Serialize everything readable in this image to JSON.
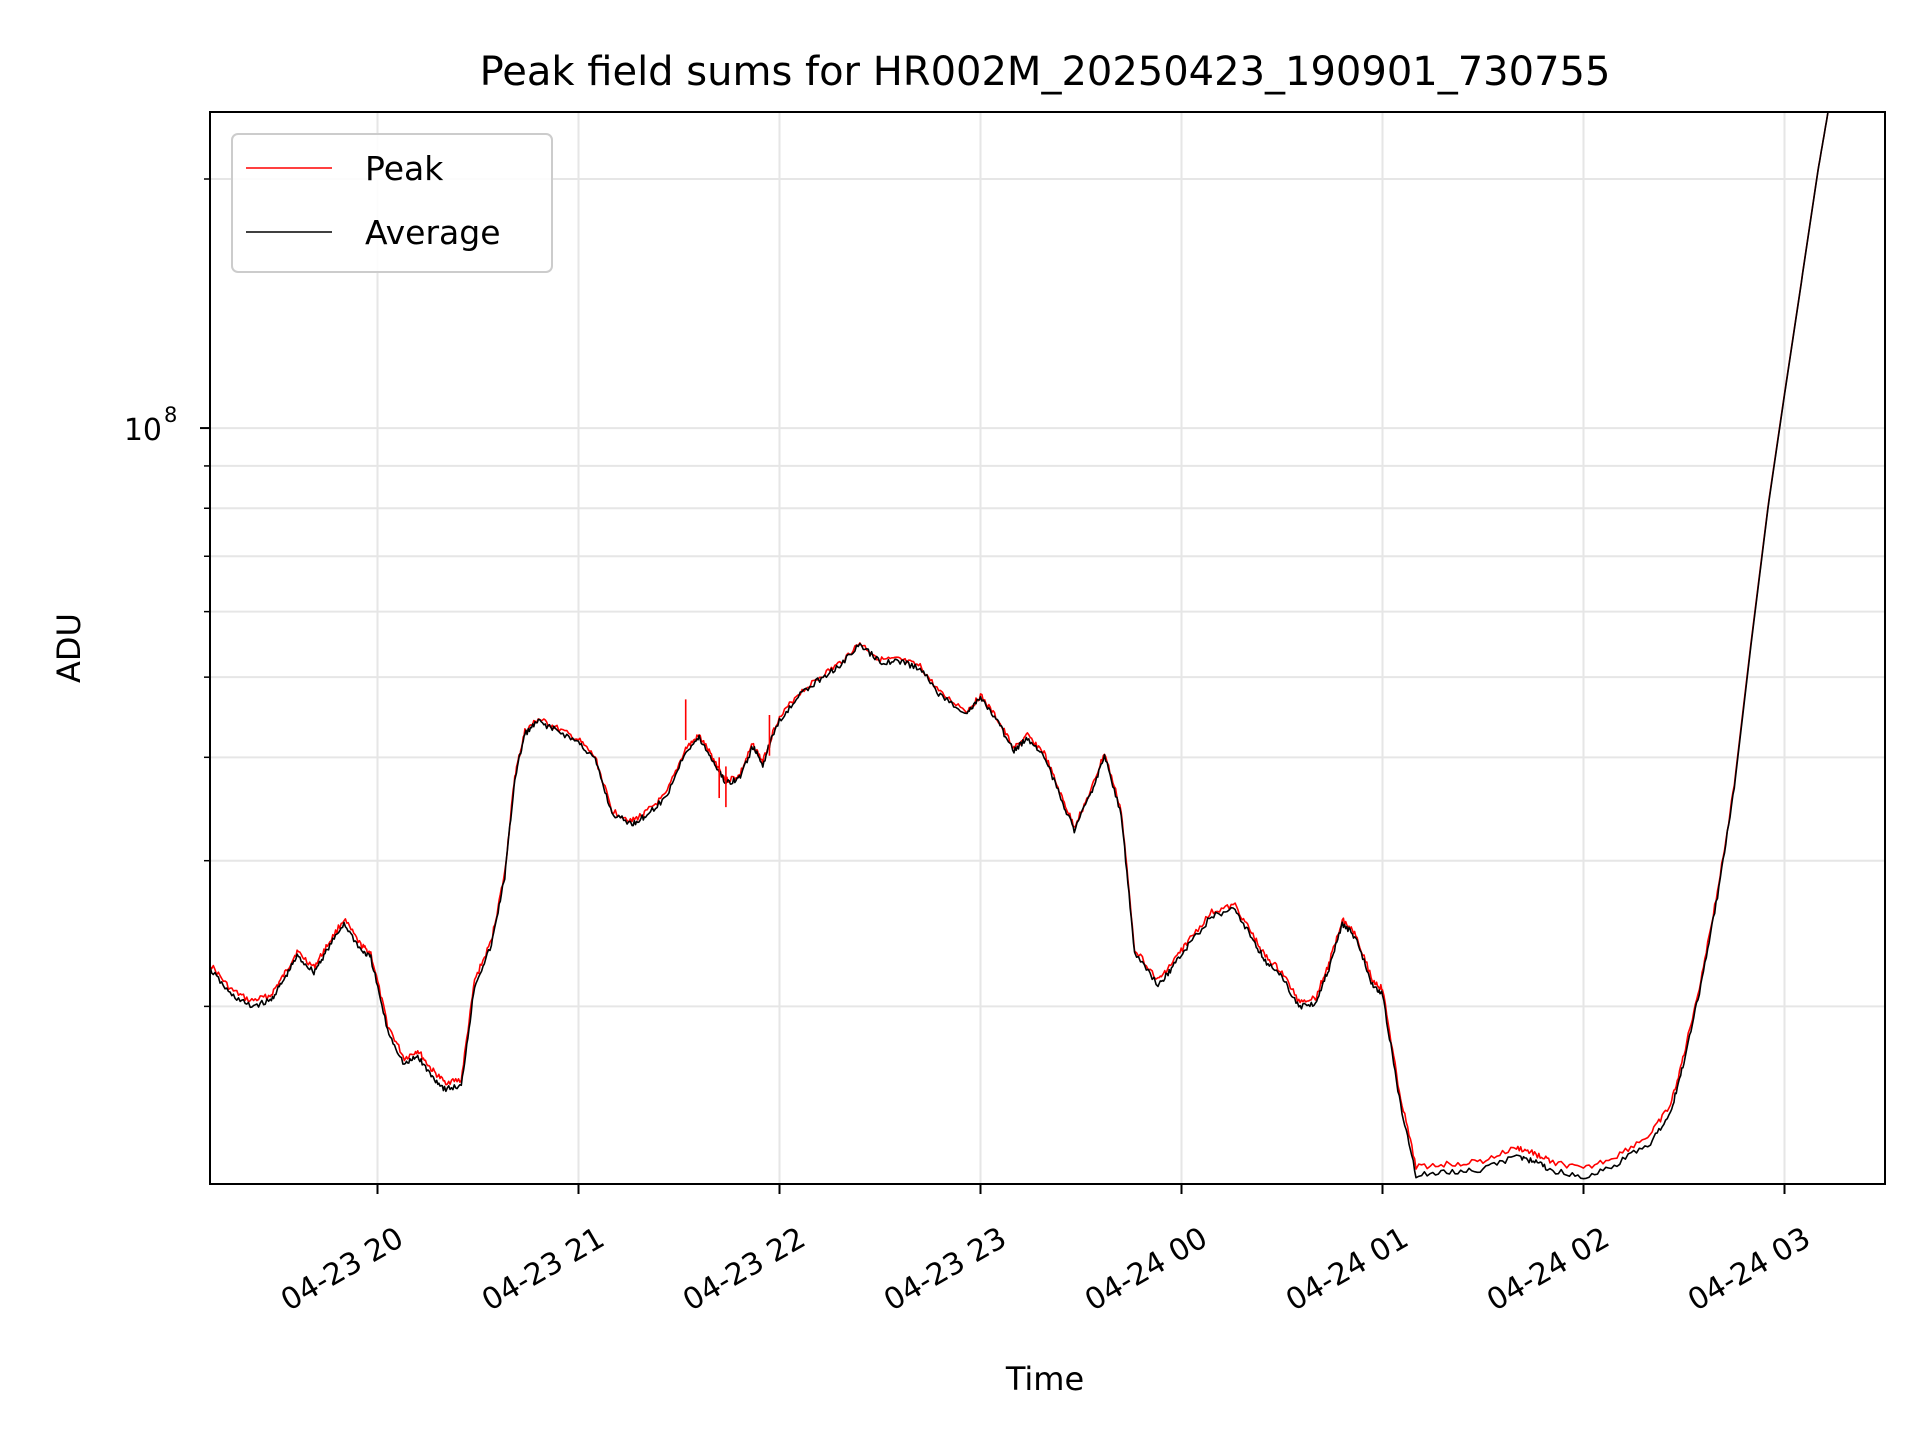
{
  "chart_data": {
    "type": "line",
    "title": "Peak field sums for HR002M_20250423_190901_730755",
    "xlabel": "Time",
    "ylabel": "ADU",
    "yscale": "log",
    "ylim": [
      12200000,
      241000000
    ],
    "xlim": [
      "2025-04-23 19:10",
      "2025-04-24 03:30"
    ],
    "grid": true,
    "legend_position": "top-left",
    "x_ticks": [
      {
        "value": "2025-04-23 20:00",
        "label": "04-23 20"
      },
      {
        "value": "2025-04-23 21:00",
        "label": "04-23 21"
      },
      {
        "value": "2025-04-23 22:00",
        "label": "04-23 22"
      },
      {
        "value": "2025-04-23 23:00",
        "label": "04-23 23"
      },
      {
        "value": "2025-04-24 00:00",
        "label": "04-24 00"
      },
      {
        "value": "2025-04-24 01:00",
        "label": "04-24 01"
      },
      {
        "value": "2025-04-24 02:00",
        "label": "04-24 02"
      },
      {
        "value": "2025-04-24 03:00",
        "label": "04-24 03"
      }
    ],
    "y_ticks": [
      {
        "value": 100000000,
        "label_base": "10",
        "label_exp": "8"
      }
    ],
    "y_minor_ticks": [
      20000000,
      30000000,
      40000000,
      50000000,
      60000000,
      70000000,
      80000000,
      90000000,
      200000000
    ],
    "series": [
      {
        "name": "Peak",
        "color": "#ff0000",
        "x": [
          "2025-04-23 19:10",
          "2025-04-23 19:16",
          "2025-04-23 19:22",
          "2025-04-23 19:28",
          "2025-04-23 19:32",
          "2025-04-23 19:36",
          "2025-04-23 19:41",
          "2025-04-23 19:45",
          "2025-04-23 19:50",
          "2025-04-23 19:55",
          "2025-04-23 19:58",
          "2025-04-23 20:03",
          "2025-04-23 20:08",
          "2025-04-23 20:12",
          "2025-04-23 20:16",
          "2025-04-23 20:20",
          "2025-04-23 20:25",
          "2025-04-23 20:29",
          "2025-04-23 20:34",
          "2025-04-23 20:38",
          "2025-04-23 20:41",
          "2025-04-23 20:44",
          "2025-04-23 20:48",
          "2025-04-23 20:53",
          "2025-04-23 21:00",
          "2025-04-23 21:05",
          "2025-04-23 21:10",
          "2025-04-23 21:16",
          "2025-04-23 21:20",
          "2025-04-23 21:26",
          "2025-04-23 21:32",
          "2025-04-23 21:36",
          "2025-04-23 21:40",
          "2025-04-23 21:44",
          "2025-04-23 21:48",
          "2025-04-23 21:52",
          "2025-04-23 21:55",
          "2025-04-23 21:59",
          "2025-04-23 22:05",
          "2025-04-23 22:12",
          "2025-04-23 22:18",
          "2025-04-23 22:24",
          "2025-04-23 22:30",
          "2025-04-23 22:36",
          "2025-04-23 22:42",
          "2025-04-23 22:48",
          "2025-04-23 22:56",
          "2025-04-23 23:00",
          "2025-04-23 23:05",
          "2025-04-23 23:10",
          "2025-04-23 23:14",
          "2025-04-23 23:19",
          "2025-04-23 23:24",
          "2025-04-23 23:28",
          "2025-04-23 23:33",
          "2025-04-23 23:37",
          "2025-04-23 23:42",
          "2025-04-23 23:46",
          "2025-04-23 23:53",
          "2025-04-23 23:57",
          "2025-04-24 00:02",
          "2025-04-24 00:09",
          "2025-04-24 00:16",
          "2025-04-24 00:21",
          "2025-04-24 00:25",
          "2025-04-24 00:30",
          "2025-04-24 00:35",
          "2025-04-24 00:40",
          "2025-04-24 00:44",
          "2025-04-24 00:48",
          "2025-04-24 00:52",
          "2025-04-24 00:57",
          "2025-04-24 01:00",
          "2025-04-24 01:05",
          "2025-04-24 01:10",
          "2025-04-24 01:20",
          "2025-04-24 01:30",
          "2025-04-24 01:40",
          "2025-04-24 01:45",
          "2025-04-24 01:50",
          "2025-04-24 02:00",
          "2025-04-24 02:10",
          "2025-04-24 02:20",
          "2025-04-24 02:26",
          "2025-04-24 02:30",
          "2025-04-24 02:35",
          "2025-04-24 02:40",
          "2025-04-24 02:45",
          "2025-04-24 02:50",
          "2025-04-24 02:55",
          "2025-04-24 03:00",
          "2025-04-24 03:05",
          "2025-04-24 03:10",
          "2025-04-24 03:13"
        ],
        "y": [
          22500000,
          21000000,
          20300000,
          20600000,
          21800000,
          23300000,
          22300000,
          23700000,
          25500000,
          23700000,
          23200000,
          19000000,
          17300000,
          17700000,
          16800000,
          16200000,
          16300000,
          21500000,
          24000000,
          29000000,
          38000000,
          43000000,
          44500000,
          43500000,
          42000000,
          40000000,
          34500000,
          33500000,
          34300000,
          36000000,
          41000000,
          42500000,
          40000000,
          37500000,
          38000000,
          41500000,
          39500000,
          44000000,
          47500000,
          50000000,
          52000000,
          55000000,
          52500000,
          52500000,
          51500000,
          47800000,
          45500000,
          47500000,
          44500000,
          41000000,
          42500000,
          40500000,
          36000000,
          33000000,
          36500000,
          40500000,
          34500000,
          23500000,
          21500000,
          22500000,
          24000000,
          26000000,
          26500000,
          24500000,
          23000000,
          22000000,
          20300000,
          20500000,
          22500000,
          25500000,
          24500000,
          21500000,
          21000000,
          15800000,
          12800000,
          12900000,
          13000000,
          13500000,
          13300000,
          13000000,
          12700000,
          13200000,
          14000000,
          15200000,
          17500000,
          21500000,
          27500000,
          37000000,
          55000000,
          80000000,
          110000000,
          150000000,
          205000000,
          241000000
        ]
      },
      {
        "name": "Average",
        "color": "#000000",
        "x": [
          "2025-04-23 19:10",
          "2025-04-23 19:16",
          "2025-04-23 19:22",
          "2025-04-23 19:28",
          "2025-04-23 19:32",
          "2025-04-23 19:36",
          "2025-04-23 19:41",
          "2025-04-23 19:45",
          "2025-04-23 19:50",
          "2025-04-23 19:55",
          "2025-04-23 19:58",
          "2025-04-23 20:03",
          "2025-04-23 20:08",
          "2025-04-23 20:12",
          "2025-04-23 20:16",
          "2025-04-23 20:20",
          "2025-04-23 20:25",
          "2025-04-23 20:29",
          "2025-04-23 20:34",
          "2025-04-23 20:38",
          "2025-04-23 20:41",
          "2025-04-23 20:44",
          "2025-04-23 20:48",
          "2025-04-23 20:53",
          "2025-04-23 21:00",
          "2025-04-23 21:05",
          "2025-04-23 21:10",
          "2025-04-23 21:16",
          "2025-04-23 21:20",
          "2025-04-23 21:26",
          "2025-04-23 21:32",
          "2025-04-23 21:36",
          "2025-04-23 21:40",
          "2025-04-23 21:44",
          "2025-04-23 21:48",
          "2025-04-23 21:52",
          "2025-04-23 21:55",
          "2025-04-23 21:59",
          "2025-04-23 22:05",
          "2025-04-23 22:12",
          "2025-04-23 22:18",
          "2025-04-23 22:24",
          "2025-04-23 22:30",
          "2025-04-23 22:36",
          "2025-04-23 22:42",
          "2025-04-23 22:48",
          "2025-04-23 22:56",
          "2025-04-23 23:00",
          "2025-04-23 23:05",
          "2025-04-23 23:10",
          "2025-04-23 23:14",
          "2025-04-23 23:19",
          "2025-04-23 23:24",
          "2025-04-23 23:28",
          "2025-04-23 23:33",
          "2025-04-23 23:37",
          "2025-04-23 23:42",
          "2025-04-23 23:46",
          "2025-04-23 23:53",
          "2025-04-23 23:57",
          "2025-04-24 00:02",
          "2025-04-24 00:09",
          "2025-04-24 00:16",
          "2025-04-24 00:21",
          "2025-04-24 00:25",
          "2025-04-24 00:30",
          "2025-04-24 00:35",
          "2025-04-24 00:40",
          "2025-04-24 00:44",
          "2025-04-24 00:48",
          "2025-04-24 00:52",
          "2025-04-24 00:57",
          "2025-04-24 01:00",
          "2025-04-24 01:05",
          "2025-04-24 01:10",
          "2025-04-24 01:20",
          "2025-04-24 01:30",
          "2025-04-24 01:40",
          "2025-04-24 01:45",
          "2025-04-24 01:50",
          "2025-04-24 02:00",
          "2025-04-24 02:10",
          "2025-04-24 02:20",
          "2025-04-24 02:26",
          "2025-04-24 02:30",
          "2025-04-24 02:35",
          "2025-04-24 02:40",
          "2025-04-24 02:45",
          "2025-04-24 02:50",
          "2025-04-24 02:55",
          "2025-04-24 03:00",
          "2025-04-24 03:05",
          "2025-04-24 03:10",
          "2025-04-24 03:13"
        ],
        "y": [
          22200000,
          20700000,
          20000000,
          20300000,
          21500000,
          23000000,
          22000000,
          23400000,
          25200000,
          23400000,
          22900000,
          18700000,
          17000000,
          17400000,
          16500000,
          15900000,
          16000000,
          21200000,
          23700000,
          28700000,
          37700000,
          42700000,
          44200000,
          43200000,
          41700000,
          39700000,
          34200000,
          33200000,
          34000000,
          35700000,
          40700000,
          42200000,
          39700000,
          37200000,
          37700000,
          41200000,
          39200000,
          43700000,
          47200000,
          49700000,
          51700000,
          54700000,
          52200000,
          52200000,
          51200000,
          47500000,
          45200000,
          47200000,
          44200000,
          40700000,
          42200000,
          40200000,
          35700000,
          32700000,
          36200000,
          40200000,
          34200000,
          23200000,
          21200000,
          22200000,
          23700000,
          25700000,
          26200000,
          24200000,
          22700000,
          21700000,
          20000000,
          20200000,
          22200000,
          25200000,
          24200000,
          21200000,
          20700000,
          15500000,
          12500000,
          12600000,
          12700000,
          13200000,
          13000000,
          12700000,
          12400000,
          12900000,
          13700000,
          14900000,
          17200000,
          21200000,
          27200000,
          36700000,
          54700000,
          79700000,
          109700000,
          149700000,
          204700000,
          241000000
        ]
      }
    ],
    "spikes": [
      {
        "x": "2025-04-23 21:32",
        "y": 47000000
      },
      {
        "x": "2025-04-23 21:42",
        "y": 40000000
      },
      {
        "x": "2025-04-23 21:44",
        "y": 39000000
      },
      {
        "x": "2025-04-23 21:57",
        "y": 45000000
      }
    ]
  }
}
